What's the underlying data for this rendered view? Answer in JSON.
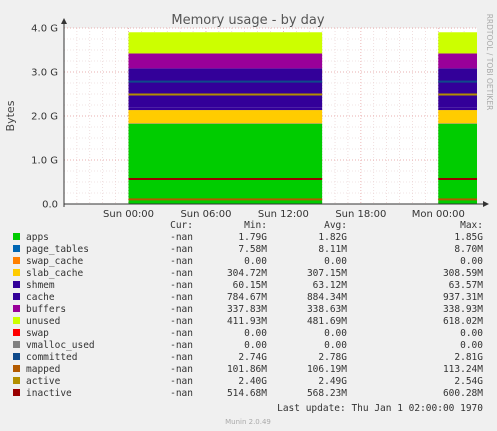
{
  "chart_data": {
    "type": "area",
    "title": "Memory usage - by day",
    "ylabel": "Bytes",
    "side_label": "RRDTOOL / TOBI OETIKER",
    "x_ticks": [
      "Sun 00:00",
      "Sun 06:00",
      "Sun 12:00",
      "Sun 18:00",
      "Mon 00:00"
    ],
    "y_ticks": [
      "0.0",
      "1.0 G",
      "2.0 G",
      "3.0 G",
      "4.0 G"
    ],
    "ylim": [
      0,
      4.0
    ],
    "y_unit": "G",
    "grid": true,
    "data_segments": [
      {
        "start": "Sun 00:00",
        "end": "Sun 15:00"
      },
      {
        "start": "Mon 00:00",
        "end": "Mon 03:00"
      }
    ],
    "stacked_series": [
      {
        "name": "apps",
        "color": "#00cc00",
        "values": [
          1.79,
          1.82,
          1.85
        ]
      },
      {
        "name": "page_tables",
        "color": "#0066b3",
        "values": [
          0.0076,
          0.0081,
          0.0087
        ]
      },
      {
        "name": "swap_cache",
        "color": "#ff8000",
        "values": [
          0,
          0,
          0
        ]
      },
      {
        "name": "slab_cache",
        "color": "#ffcc00",
        "values": [
          0.305,
          0.307,
          0.309
        ]
      },
      {
        "name": "shmem",
        "color": "#330099",
        "values": [
          0.06,
          0.063,
          0.064
        ]
      },
      {
        "name": "cache",
        "color": "#330099",
        "values": [
          0.785,
          0.884,
          0.937
        ]
      },
      {
        "name": "buffers",
        "color": "#990099",
        "values": [
          0.338,
          0.339,
          0.339
        ]
      },
      {
        "name": "unused",
        "color": "#ccff00",
        "values": [
          0.412,
          0.482,
          0.618
        ]
      }
    ],
    "line_series": [
      {
        "name": "committed",
        "color": "#0f4a8a",
        "value": 2.78
      },
      {
        "name": "active",
        "color": "#b38f00",
        "value": 2.49
      },
      {
        "name": "inactive",
        "color": "#990000",
        "value": 0.568
      },
      {
        "name": "mapped",
        "color": "#b35a00",
        "value": 0.106
      }
    ],
    "legend": {
      "columns": [
        "Cur:",
        "Min:",
        "Avg:",
        "Max:"
      ],
      "rows": [
        {
          "name": "apps",
          "color": "#00cc00",
          "cur": "-nan",
          "min": "1.79G",
          "avg": "1.82G",
          "max": "1.85G"
        },
        {
          "name": "page_tables",
          "color": "#0066b3",
          "cur": "-nan",
          "min": "7.58M",
          "avg": "8.11M",
          "max": "8.70M"
        },
        {
          "name": "swap_cache",
          "color": "#ff8000",
          "cur": "-nan",
          "min": "0.00",
          "avg": "0.00",
          "max": "0.00"
        },
        {
          "name": "slab_cache",
          "color": "#ffcc00",
          "cur": "-nan",
          "min": "304.72M",
          "avg": "307.15M",
          "max": "308.59M"
        },
        {
          "name": "shmem",
          "color": "#330099",
          "cur": "-nan",
          "min": "60.15M",
          "avg": "63.12M",
          "max": "63.57M"
        },
        {
          "name": "cache",
          "color": "#330099",
          "cur": "-nan",
          "min": "784.67M",
          "avg": "884.34M",
          "max": "937.31M"
        },
        {
          "name": "buffers",
          "color": "#990099",
          "cur": "-nan",
          "min": "337.83M",
          "avg": "338.63M",
          "max": "338.93M"
        },
        {
          "name": "unused",
          "color": "#ccff00",
          "cur": "-nan",
          "min": "411.93M",
          "avg": "481.69M",
          "max": "618.02M"
        },
        {
          "name": "swap",
          "color": "#ff0000",
          "cur": "-nan",
          "min": "0.00",
          "avg": "0.00",
          "max": "0.00"
        },
        {
          "name": "vmalloc_used",
          "color": "#808080",
          "cur": "-nan",
          "min": "0.00",
          "avg": "0.00",
          "max": "0.00"
        },
        {
          "name": "committed",
          "color": "#0f4a8a",
          "cur": "-nan",
          "min": "2.74G",
          "avg": "2.78G",
          "max": "2.81G"
        },
        {
          "name": "mapped",
          "color": "#b35a00",
          "cur": "-nan",
          "min": "101.86M",
          "avg": "106.19M",
          "max": "113.24M"
        },
        {
          "name": "active",
          "color": "#b38f00",
          "cur": "-nan",
          "min": "2.40G",
          "avg": "2.49G",
          "max": "2.54G"
        },
        {
          "name": "inactive",
          "color": "#990000",
          "cur": "-nan",
          "min": "514.68M",
          "avg": "568.23M",
          "max": "600.28M"
        }
      ]
    },
    "last_update": "Last update: Thu Jan  1 02:00:00 1970",
    "footer": "Munin 2.0.49"
  }
}
